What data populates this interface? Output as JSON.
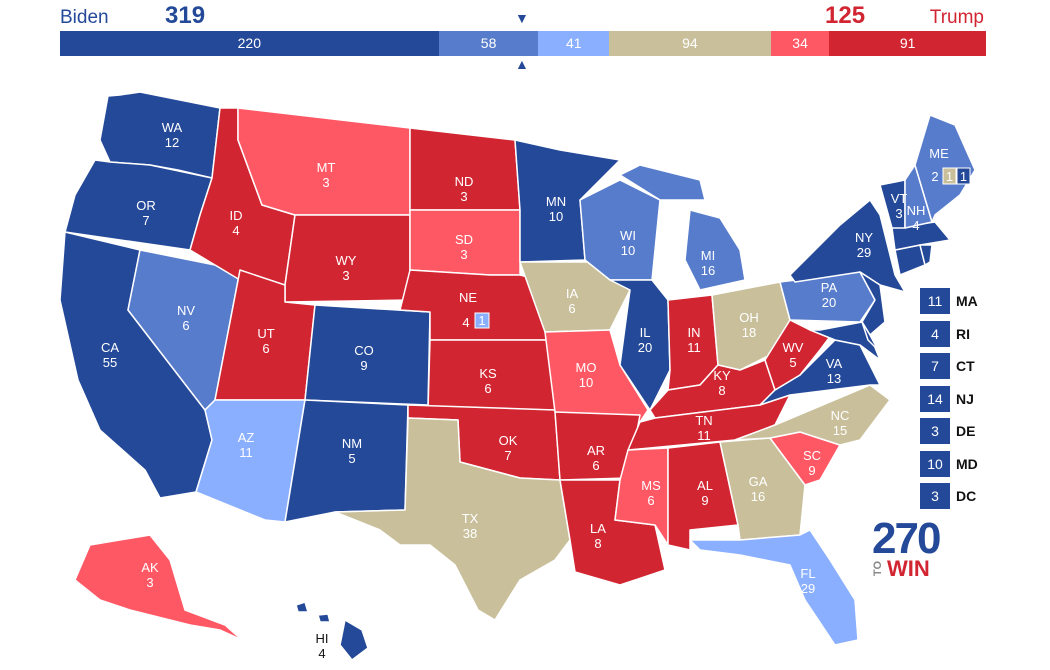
{
  "header": {
    "left_name": "Biden",
    "left_total": "319",
    "right_name": "Trump",
    "right_total": "125",
    "segments": [
      {
        "value": "220",
        "color": "#244999",
        "ev": 220
      },
      {
        "value": "58",
        "color": "#577ccc",
        "ev": 58
      },
      {
        "value": "41",
        "color": "#8aafff",
        "ev": 41
      },
      {
        "value": "94",
        "color": "#c9c09b",
        "ev": 94
      },
      {
        "value": "34",
        "color": "#ff5865",
        "ev": 34
      },
      {
        "value": "91",
        "color": "#d22532",
        "ev": 91
      }
    ]
  },
  "colors": {
    "safe_d": "#244999",
    "likely_d": "#577ccc",
    "lean_d": "#8aafff",
    "tossup": "#c9c09b",
    "lean_r": "#ff5865",
    "safe_r": "#d22532"
  },
  "states": [
    {
      "abbr": "WA",
      "ev": "12",
      "rating": "safe_d"
    },
    {
      "abbr": "OR",
      "ev": "7",
      "rating": "safe_d"
    },
    {
      "abbr": "CA",
      "ev": "55",
      "rating": "safe_d"
    },
    {
      "abbr": "NV",
      "ev": "6",
      "rating": "likely_d"
    },
    {
      "abbr": "ID",
      "ev": "4",
      "rating": "safe_r"
    },
    {
      "abbr": "MT",
      "ev": "3",
      "rating": "lean_r"
    },
    {
      "abbr": "WY",
      "ev": "3",
      "rating": "safe_r"
    },
    {
      "abbr": "UT",
      "ev": "6",
      "rating": "safe_r"
    },
    {
      "abbr": "AZ",
      "ev": "11",
      "rating": "lean_d"
    },
    {
      "abbr": "CO",
      "ev": "9",
      "rating": "safe_d"
    },
    {
      "abbr": "NM",
      "ev": "5",
      "rating": "safe_d"
    },
    {
      "abbr": "ND",
      "ev": "3",
      "rating": "safe_r"
    },
    {
      "abbr": "SD",
      "ev": "3",
      "rating": "lean_r"
    },
    {
      "abbr": "NE",
      "ev": "4",
      "rating": "safe_r",
      "district_ev": "1",
      "district_rating": "lean_d"
    },
    {
      "abbr": "KS",
      "ev": "6",
      "rating": "safe_r"
    },
    {
      "abbr": "OK",
      "ev": "7",
      "rating": "safe_r"
    },
    {
      "abbr": "TX",
      "ev": "38",
      "rating": "tossup"
    },
    {
      "abbr": "MN",
      "ev": "10",
      "rating": "safe_d"
    },
    {
      "abbr": "IA",
      "ev": "6",
      "rating": "tossup"
    },
    {
      "abbr": "MO",
      "ev": "10",
      "rating": "lean_r"
    },
    {
      "abbr": "AR",
      "ev": "6",
      "rating": "safe_r"
    },
    {
      "abbr": "LA",
      "ev": "8",
      "rating": "safe_r"
    },
    {
      "abbr": "WI",
      "ev": "10",
      "rating": "likely_d"
    },
    {
      "abbr": "IL",
      "ev": "20",
      "rating": "safe_d"
    },
    {
      "abbr": "MI",
      "ev": "16",
      "rating": "likely_d"
    },
    {
      "abbr": "IN",
      "ev": "11",
      "rating": "safe_r"
    },
    {
      "abbr": "OH",
      "ev": "18",
      "rating": "tossup"
    },
    {
      "abbr": "KY",
      "ev": "8",
      "rating": "safe_r"
    },
    {
      "abbr": "TN",
      "ev": "11",
      "rating": "safe_r"
    },
    {
      "abbr": "MS",
      "ev": "6",
      "rating": "lean_r"
    },
    {
      "abbr": "AL",
      "ev": "9",
      "rating": "safe_r"
    },
    {
      "abbr": "GA",
      "ev": "16",
      "rating": "tossup"
    },
    {
      "abbr": "FL",
      "ev": "29",
      "rating": "lean_d"
    },
    {
      "abbr": "SC",
      "ev": "9",
      "rating": "lean_r"
    },
    {
      "abbr": "NC",
      "ev": "15",
      "rating": "tossup"
    },
    {
      "abbr": "VA",
      "ev": "13",
      "rating": "safe_d"
    },
    {
      "abbr": "WV",
      "ev": "5",
      "rating": "safe_r"
    },
    {
      "abbr": "PA",
      "ev": "20",
      "rating": "likely_d"
    },
    {
      "abbr": "NY",
      "ev": "29",
      "rating": "safe_d"
    },
    {
      "abbr": "VT",
      "ev": "3",
      "rating": "safe_d"
    },
    {
      "abbr": "NH",
      "ev": "4",
      "rating": "likely_d"
    },
    {
      "abbr": "ME",
      "ev": "2",
      "rating": "likely_d",
      "district_ev_1": "1",
      "district_rating_1": "tossup",
      "district_ev_2": "1",
      "district_rating_2": "safe_d"
    },
    {
      "abbr": "AK",
      "ev": "3",
      "rating": "lean_r"
    },
    {
      "abbr": "HI",
      "ev": "4",
      "rating": "safe_d"
    }
  ],
  "small_states": [
    {
      "abbr": "MA",
      "ev": "11",
      "rating": "safe_d"
    },
    {
      "abbr": "RI",
      "ev": "4",
      "rating": "safe_d"
    },
    {
      "abbr": "CT",
      "ev": "7",
      "rating": "safe_d"
    },
    {
      "abbr": "NJ",
      "ev": "14",
      "rating": "safe_d"
    },
    {
      "abbr": "DE",
      "ev": "3",
      "rating": "safe_d"
    },
    {
      "abbr": "MD",
      "ev": "10",
      "rating": "safe_d"
    },
    {
      "abbr": "DC",
      "ev": "3",
      "rating": "safe_d"
    }
  ],
  "logo": {
    "number": "270",
    "to": "TO",
    "win": "WIN"
  }
}
